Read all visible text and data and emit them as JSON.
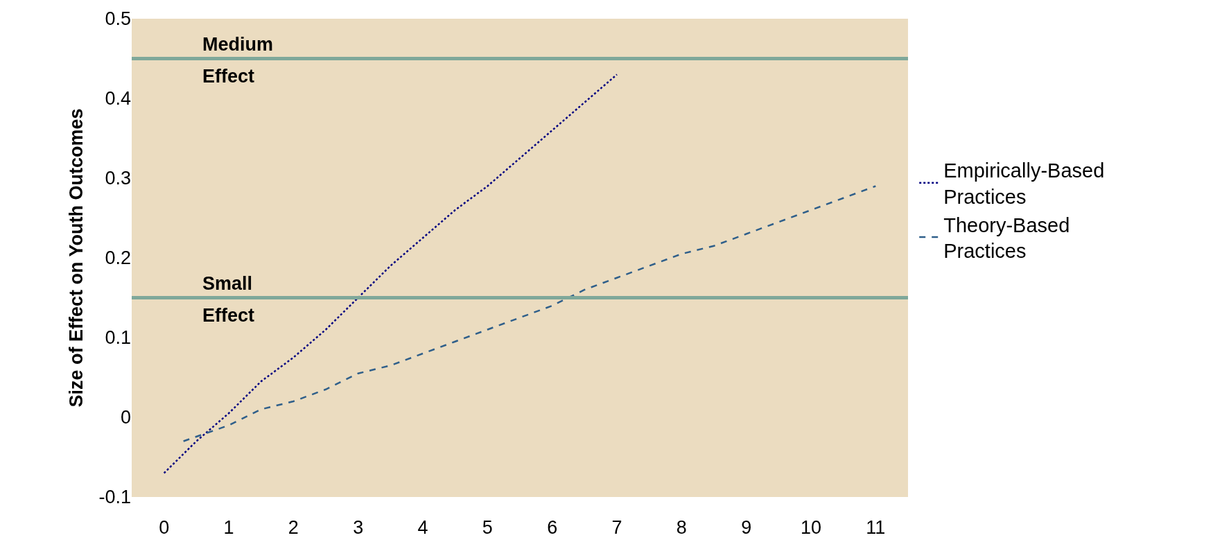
{
  "chart_data": {
    "type": "line",
    "ylabel": "Size of Effect on Youth Outcomes",
    "xlim": [
      -0.5,
      11.5
    ],
    "xticks": [
      0,
      1,
      2,
      3,
      4,
      5,
      6,
      7,
      8,
      9,
      10,
      11
    ],
    "ylim": [
      -0.1,
      0.5
    ],
    "yticks": [
      -0.1,
      0,
      0.1,
      0.2,
      0.3,
      0.4,
      0.5
    ],
    "grid": false,
    "legend": "right",
    "series": [
      {
        "name": "Empirically-Based Practices",
        "color": "#000080",
        "line_style": "dotted",
        "x": [
          0,
          0.5,
          1,
          1.5,
          2,
          2.5,
          3,
          3.5,
          4,
          4.5,
          5,
          5.5,
          6,
          6.5,
          7
        ],
        "values": [
          -0.07,
          -0.03,
          0.005,
          0.045,
          0.075,
          0.11,
          0.15,
          0.19,
          0.225,
          0.26,
          0.29,
          0.325,
          0.36,
          0.395,
          0.43
        ]
      },
      {
        "name": "Theory-Based Practices",
        "color": "#2f5f8a",
        "line_style": "dashed",
        "x": [
          0.3,
          1,
          1.5,
          2,
          2.5,
          3,
          3.5,
          4,
          4.5,
          5,
          5.5,
          6,
          6.5,
          7,
          7.5,
          8,
          8.5,
          9,
          9.5,
          10,
          10.5,
          11
        ],
        "values": [
          -0.03,
          -0.01,
          0.01,
          0.02,
          0.035,
          0.055,
          0.065,
          0.08,
          0.095,
          0.11,
          0.125,
          0.14,
          0.16,
          0.175,
          0.19,
          0.205,
          0.215,
          0.23,
          0.245,
          0.26,
          0.275,
          0.29
        ]
      }
    ],
    "ref_lines": [
      {
        "axis": "y",
        "value": 0.45,
        "label": "Medium Effect",
        "color": "#7fa89a"
      },
      {
        "axis": "y",
        "value": 0.15,
        "label": "Small Effect",
        "color": "#7fa89a"
      }
    ]
  }
}
